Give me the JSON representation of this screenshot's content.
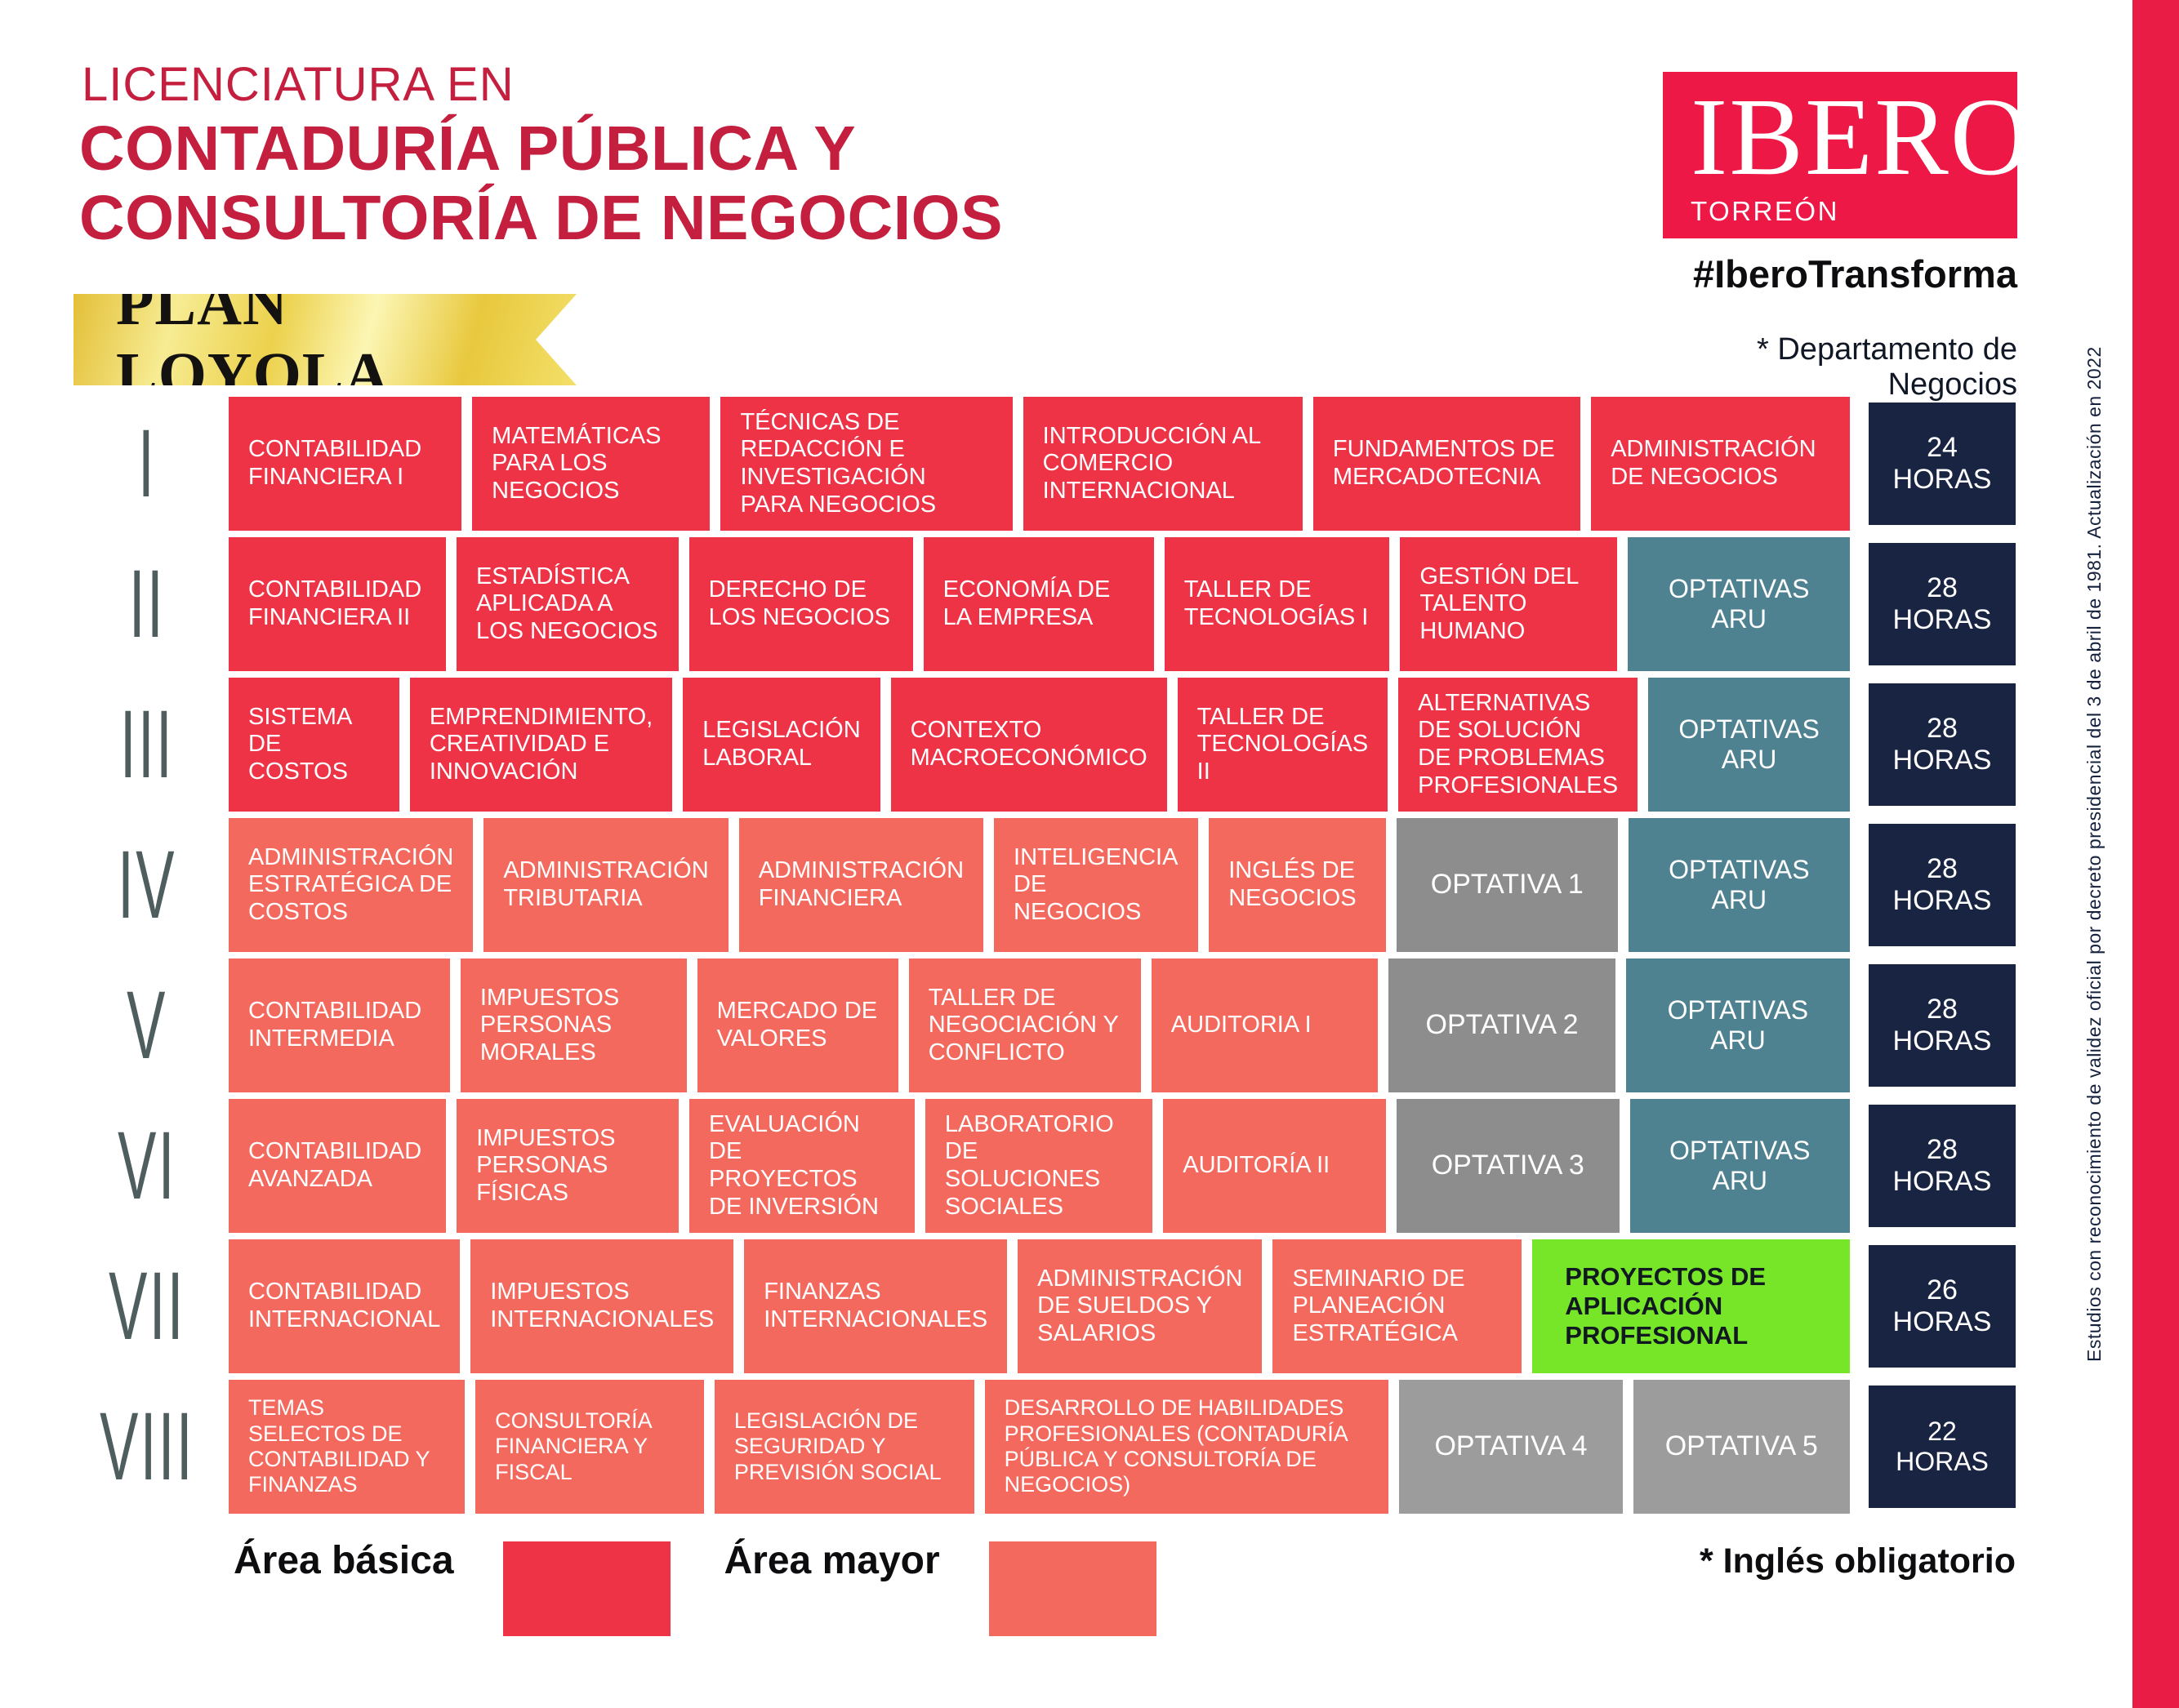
{
  "header": {
    "kicker": "LICENCIATURA EN",
    "title_line1": "CONTADURÍA PÚBLICA Y",
    "title_line2": "CONSULTORÍA DE NEGOCIOS",
    "plan_badge": "PLAN LOYOLA",
    "logo": {
      "name": "IBERO",
      "campus": "TORREÓN",
      "hashtag": "#IberoTransforma"
    },
    "department_note": "* Departamento de Negocios"
  },
  "colors": {
    "area-basica": "#EF3347",
    "area-mayor": "#F4695E",
    "optativas-aru": "#4F8291",
    "optativa": "#8D8D8D",
    "optativa-light": "#9C9C9C",
    "hours-navy": "#192442",
    "green-card": "#77E628",
    "title-red": "#C41F3E",
    "logo-red": "#ED1846",
    "stripe-red": "#E81C45",
    "numeral-gray": "#4E5D5E"
  },
  "semesters": [
    {
      "numeral": "I",
      "hours": "24 HORAS",
      "courses": [
        {
          "label": "CONTABILIDAD FINANCIERA I",
          "type": "basic"
        },
        {
          "label": "MATEMÁTICAS PARA LOS NEGOCIOS",
          "type": "basic"
        },
        {
          "label": "TÉCNICAS DE REDACCIÓN E INVESTIGACIÓN PARA NEGOCIOS",
          "type": "basic"
        },
        {
          "label": "INTRODUCCIÓN AL COMERCIO INTERNACIONAL",
          "type": "basic"
        },
        {
          "label": "FUNDAMENTOS DE MERCADOTECNIA",
          "type": "basic"
        },
        {
          "label": "ADMINISTRACIÓN DE NEGOCIOS",
          "type": "basic"
        }
      ]
    },
    {
      "numeral": "II",
      "hours": "28 HORAS",
      "courses": [
        {
          "label": "CONTABILIDAD FINANCIERA II",
          "type": "basic"
        },
        {
          "label": "ESTADÍSTICA APLICADA A LOS NEGOCIOS",
          "type": "basic"
        },
        {
          "label": "DERECHO DE LOS NEGOCIOS",
          "type": "basic"
        },
        {
          "label": "ECONOMÍA DE LA EMPRESA",
          "type": "basic"
        },
        {
          "label": "TALLER DE TECNOLOGÍAS I",
          "type": "basic"
        },
        {
          "label": "GESTIÓN DEL TALENTO HUMANO",
          "type": "basic"
        },
        {
          "label": "OPTATIVAS ARU",
          "type": "aru"
        }
      ]
    },
    {
      "numeral": "III",
      "hours": "28 HORAS",
      "courses": [
        {
          "label": "SISTEMA DE COSTOS",
          "type": "basic"
        },
        {
          "label": "EMPRENDIMIENTO, CREATIVIDAD E INNOVACIÓN",
          "type": "basic"
        },
        {
          "label": "LEGISLACIÓN LABORAL",
          "type": "basic"
        },
        {
          "label": "CONTEXTO MACROECONÓMICO",
          "type": "basic"
        },
        {
          "label": "TALLER DE TECNOLOGÍAS II",
          "type": "basic"
        },
        {
          "label": "ALTERNATIVAS DE SOLUCIÓN DE PROBLEMAS PROFESIONALES",
          "type": "basic"
        },
        {
          "label": "OPTATIVAS ARU",
          "type": "aru"
        }
      ]
    },
    {
      "numeral": "IV",
      "hours": "28 HORAS",
      "courses": [
        {
          "label": "ADMINISTRACIÓN ESTRATÉGICA DE COSTOS",
          "type": "major"
        },
        {
          "label": "ADMINISTRACIÓN TRIBUTARIA",
          "type": "major"
        },
        {
          "label": "ADMINISTRACIÓN FINANCIERA",
          "type": "major"
        },
        {
          "label": "INTELIGENCIA DE NEGOCIOS",
          "type": "major"
        },
        {
          "label": "INGLÉS DE NEGOCIOS",
          "type": "major"
        },
        {
          "label": "OPTATIVA 1",
          "type": "optativa"
        },
        {
          "label": "OPTATIVAS ARU",
          "type": "aru"
        }
      ]
    },
    {
      "numeral": "V",
      "hours": "28 HORAS",
      "courses": [
        {
          "label": "CONTABILIDAD INTERMEDIA",
          "type": "major"
        },
        {
          "label": "IMPUESTOS PERSONAS MORALES",
          "type": "major"
        },
        {
          "label": "MERCADO DE VALORES",
          "type": "major"
        },
        {
          "label": "TALLER DE NEGOCIACIÓN Y CONFLICTO",
          "type": "major"
        },
        {
          "label": "AUDITORIA I",
          "type": "major"
        },
        {
          "label": "OPTATIVA 2",
          "type": "optativa"
        },
        {
          "label": "OPTATIVAS ARU",
          "type": "aru"
        }
      ]
    },
    {
      "numeral": "VI",
      "hours": "28 HORAS",
      "courses": [
        {
          "label": "CONTABILIDAD AVANZADA",
          "type": "major"
        },
        {
          "label": "IMPUESTOS PERSONAS FÍSICAS",
          "type": "major"
        },
        {
          "label": "EVALUACIÓN DE PROYECTOS DE INVERSIÓN",
          "type": "major"
        },
        {
          "label": "LABORATORIO DE SOLUCIONES SOCIALES",
          "type": "major"
        },
        {
          "label": "AUDITORÍA II",
          "type": "major"
        },
        {
          "label": "OPTATIVA 3",
          "type": "optativa"
        },
        {
          "label": "OPTATIVAS ARU",
          "type": "aru"
        }
      ]
    },
    {
      "numeral": "VII",
      "hours": "26 HORAS",
      "courses": [
        {
          "label": "CONTABILIDAD INTERNACIONAL",
          "type": "major"
        },
        {
          "label": "IMPUESTOS INTERNACIONALES",
          "type": "major"
        },
        {
          "label": "FINANZAS INTERNACIONALES",
          "type": "major"
        },
        {
          "label": "ADMINISTRACIÓN DE SUELDOS Y SALARIOS",
          "type": "major"
        },
        {
          "label": "SEMINARIO DE PLANEACIÓN ESTRATÉGICA",
          "type": "major"
        },
        {
          "label": "PROYECTOS DE APLICACIÓN PROFESIONAL",
          "type": "green"
        }
      ]
    },
    {
      "numeral": "VIII",
      "hours": "22 HORAS",
      "courses": [
        {
          "label": "TEMAS SELECTOS DE CONTABILIDAD Y FINANZAS",
          "type": "major"
        },
        {
          "label": "CONSULTORÍA FINANCIERA Y FISCAL",
          "type": "major"
        },
        {
          "label": "LEGISLACIÓN DE SEGURIDAD Y PREVISIÓN SOCIAL",
          "type": "major"
        },
        {
          "label": "DESARROLLO DE HABILIDADES PROFESIONALES (CONTADURÍA PÚBLICA Y CONSULTORÍA DE NEGOCIOS)",
          "type": "major"
        },
        {
          "label": "OPTATIVA 4",
          "type": "optativa"
        },
        {
          "label": "OPTATIVA 5",
          "type": "optativa"
        }
      ]
    }
  ],
  "legend": {
    "items": [
      {
        "label": "Área básica",
        "type": "basic"
      },
      {
        "label": "Área mayor",
        "type": "major"
      }
    ]
  },
  "english_note": "* Inglés obligatorio",
  "side_note": "Estudios con reconocimiento de validez oficial por decreto presidencial del 3 de abril de 1981. Actualización en 2022"
}
